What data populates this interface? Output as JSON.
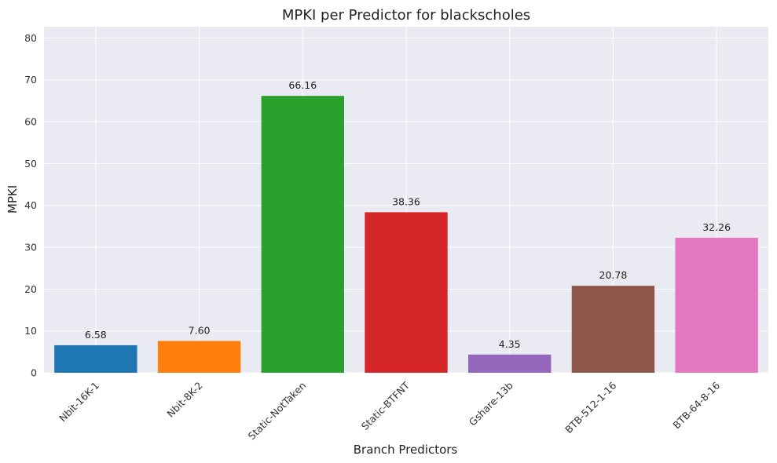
{
  "chart_data": {
    "type": "bar",
    "title": "MPKI per Predictor for blackscholes",
    "xlabel": "Branch Predictors",
    "ylabel": "MPKI",
    "categories": [
      "Nbit-16K-1",
      "Nbit-8K-2",
      "Static-NotTaken",
      "Static-BTFNT",
      "Gshare-13b",
      "BTB-512-1-16",
      "BTB-64-8-16"
    ],
    "values": [
      6.58,
      7.6,
      66.16,
      38.36,
      4.35,
      20.78,
      32.26
    ],
    "value_labels": [
      "6.58",
      "7.60",
      "66.16",
      "38.36",
      "4.35",
      "20.78",
      "32.26"
    ],
    "colors": [
      "#1f77b4",
      "#ff7f0e",
      "#2ca02c",
      "#d62728",
      "#9467bd",
      "#8c564b",
      "#e377c2"
    ],
    "ylim": [
      0,
      82.7
    ],
    "yticks": [
      0,
      10,
      20,
      30,
      40,
      50,
      60,
      70,
      80
    ],
    "grid": true,
    "background": "#eaeaf2"
  }
}
